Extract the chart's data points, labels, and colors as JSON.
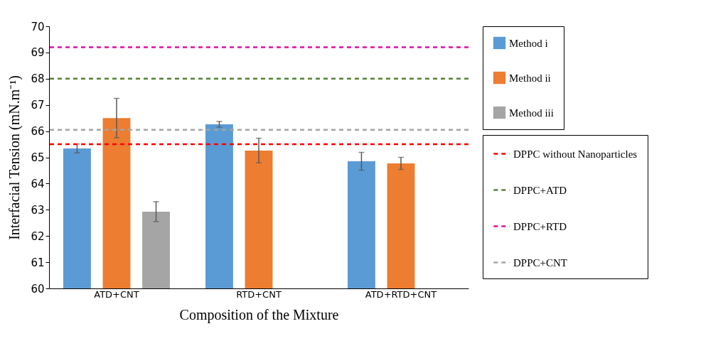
{
  "chart_data": {
    "type": "bar",
    "xlabel": "Composition  of the Mixture",
    "ylabel": "Interfacial Tension (mN.m⁻¹)",
    "categories": [
      "ATD+CNT",
      "RTD+CNT",
      "ATD+RTD+CNT"
    ],
    "series": [
      {
        "name": "Method i",
        "color": "#5b9bd5",
        "values": [
          65.34,
          66.26,
          64.85
        ],
        "errors": [
          0.17,
          0.11,
          0.34
        ]
      },
      {
        "name": "Method ii",
        "color": "#ed7d31",
        "values": [
          66.5,
          65.26,
          64.77
        ],
        "errors": [
          0.75,
          0.47,
          0.23
        ]
      },
      {
        "name": "Method iii",
        "color": "#a5a5a5",
        "values": [
          62.93,
          null,
          null
        ],
        "errors": [
          0.38,
          null,
          null
        ]
      }
    ],
    "ref_lines": [
      {
        "axis": "y",
        "value": 65.5,
        "label": "DPPC without Nanoparticles",
        "color": "#ff0000",
        "line_style": "dashed"
      },
      {
        "axis": "y",
        "value": 68.0,
        "label": "DPPC+ATD",
        "color": "#548235",
        "line_style": "dashed"
      },
      {
        "axis": "y",
        "value": 69.2,
        "label": "DPPC+RTD",
        "color": "#e0109f",
        "line_style": "dashed"
      },
      {
        "axis": "y",
        "value": 66.05,
        "label": "DPPC+CNT",
        "color": "#a5a5a5",
        "line_style": "dashed"
      }
    ],
    "ylim": [
      60,
      70
    ],
    "yticks": [
      60,
      61,
      62,
      63,
      64,
      65,
      66,
      67,
      68,
      69,
      70
    ],
    "grid": false,
    "legend": "right"
  }
}
